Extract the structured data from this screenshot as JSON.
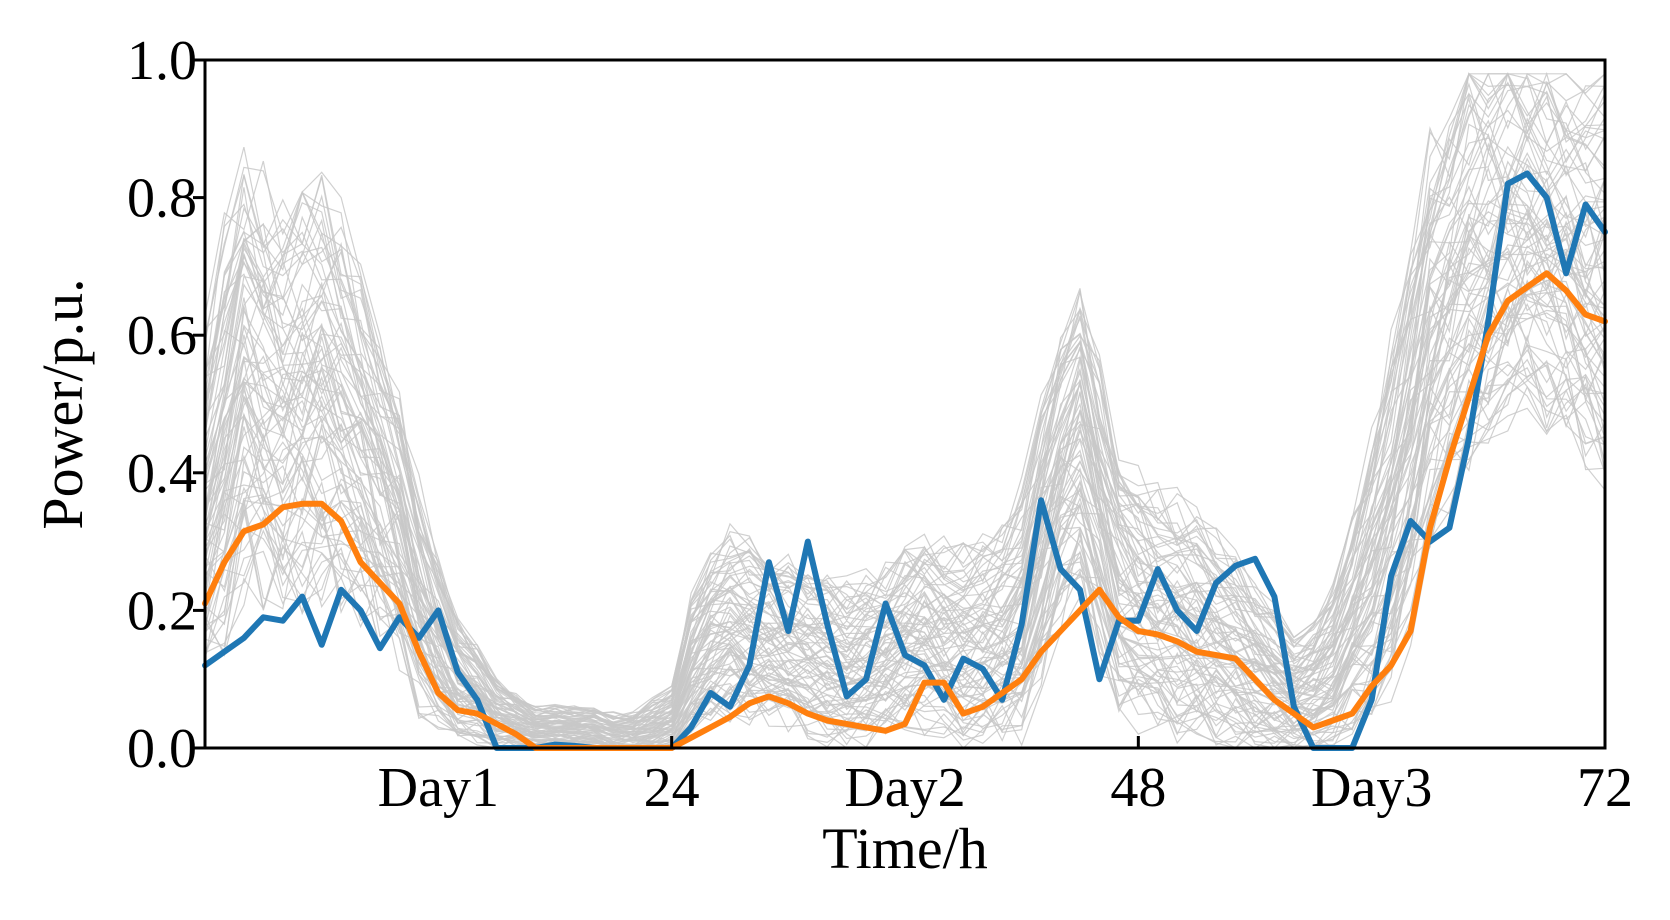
{
  "chart_data": {
    "type": "line",
    "xlabel": "Time/h",
    "ylabel": "Power/p.u.",
    "xlim": [
      0,
      72
    ],
    "ylim": [
      0,
      1.0
    ],
    "x_ticks": [
      24,
      48,
      72
    ],
    "x_tick_labels": [
      "24",
      "48",
      "72"
    ],
    "day_labels": [
      {
        "label": "Day1",
        "x": 12
      },
      {
        "label": "Day2",
        "x": 36
      },
      {
        "label": "Day3",
        "x": 60
      }
    ],
    "y_ticks": [
      0.0,
      0.2,
      0.4,
      0.6,
      0.8,
      1.0
    ],
    "y_tick_labels": [
      "0.0",
      "0.2",
      "0.4",
      "0.6",
      "0.8",
      "1.0"
    ],
    "grid": false,
    "x": [
      0,
      1,
      2,
      3,
      4,
      5,
      6,
      7,
      8,
      9,
      10,
      11,
      12,
      13,
      14,
      15,
      16,
      17,
      18,
      19,
      20,
      21,
      22,
      23,
      24,
      25,
      26,
      27,
      28,
      29,
      30,
      31,
      32,
      33,
      34,
      35,
      36,
      37,
      38,
      39,
      40,
      41,
      42,
      43,
      44,
      45,
      46,
      47,
      48,
      49,
      50,
      51,
      52,
      53,
      54,
      55,
      56,
      57,
      58,
      59,
      60,
      61,
      62,
      63,
      64,
      65,
      66,
      67,
      68,
      69,
      70,
      71,
      72
    ],
    "series": [
      {
        "color": "#1f77b4",
        "values": [
          0.12,
          0.14,
          0.16,
          0.19,
          0.185,
          0.22,
          0.15,
          0.23,
          0.2,
          0.145,
          0.19,
          0.16,
          0.2,
          0.11,
          0.07,
          0.0,
          0.0,
          0.0,
          0.005,
          0.003,
          0.0,
          0.0,
          0.0,
          0.0,
          0.0,
          0.03,
          0.08,
          0.06,
          0.12,
          0.27,
          0.17,
          0.3,
          0.18,
          0.075,
          0.1,
          0.21,
          0.135,
          0.12,
          0.07,
          0.13,
          0.115,
          0.07,
          0.18,
          0.36,
          0.26,
          0.23,
          0.1,
          0.185,
          0.185,
          0.26,
          0.2,
          0.17,
          0.24,
          0.265,
          0.275,
          0.22,
          0.06,
          0.0,
          0.0,
          0.0,
          0.07,
          0.25,
          0.33,
          0.3,
          0.32,
          0.45,
          0.62,
          0.82,
          0.835,
          0.8,
          0.69,
          0.79,
          0.75
        ]
      },
      {
        "color": "#ff7f0e",
        "values": [
          0.21,
          0.27,
          0.315,
          0.325,
          0.35,
          0.355,
          0.355,
          0.33,
          0.27,
          0.24,
          0.21,
          0.14,
          0.08,
          0.055,
          0.05,
          0.035,
          0.02,
          0.0,
          0.0,
          0.0,
          0.0,
          0.0,
          0.0,
          0.0,
          0.0,
          0.015,
          0.03,
          0.045,
          0.065,
          0.075,
          0.065,
          0.05,
          0.04,
          0.035,
          0.03,
          0.025,
          0.035,
          0.095,
          0.095,
          0.05,
          0.06,
          0.08,
          0.1,
          0.14,
          0.17,
          0.2,
          0.23,
          0.19,
          0.17,
          0.165,
          0.155,
          0.14,
          0.135,
          0.13,
          0.1,
          0.07,
          0.05,
          0.03,
          0.04,
          0.05,
          0.09,
          0.12,
          0.17,
          0.32,
          0.42,
          0.51,
          0.6,
          0.65,
          0.67,
          0.69,
          0.665,
          0.63,
          0.62
        ]
      }
    ],
    "scenario_band": {
      "color": "#c8c8c8",
      "count": 80,
      "base": [
        0.35,
        0.45,
        0.55,
        0.52,
        0.5,
        0.52,
        0.53,
        0.5,
        0.45,
        0.38,
        0.32,
        0.22,
        0.15,
        0.1,
        0.08,
        0.05,
        0.04,
        0.03,
        0.03,
        0.03,
        0.03,
        0.02,
        0.02,
        0.03,
        0.04,
        0.12,
        0.16,
        0.18,
        0.17,
        0.16,
        0.15,
        0.14,
        0.13,
        0.12,
        0.13,
        0.14,
        0.16,
        0.17,
        0.16,
        0.15,
        0.16,
        0.17,
        0.2,
        0.3,
        0.4,
        0.45,
        0.35,
        0.25,
        0.22,
        0.2,
        0.19,
        0.18,
        0.16,
        0.14,
        0.12,
        0.1,
        0.08,
        0.09,
        0.12,
        0.18,
        0.25,
        0.33,
        0.45,
        0.58,
        0.65,
        0.7,
        0.72,
        0.74,
        0.74,
        0.73,
        0.72,
        0.7,
        0.68
      ],
      "spread": [
        0.25,
        0.3,
        0.32,
        0.3,
        0.3,
        0.3,
        0.3,
        0.28,
        0.25,
        0.22,
        0.2,
        0.16,
        0.12,
        0.09,
        0.07,
        0.05,
        0.04,
        0.03,
        0.03,
        0.03,
        0.03,
        0.03,
        0.03,
        0.04,
        0.05,
        0.1,
        0.12,
        0.13,
        0.13,
        0.12,
        0.12,
        0.12,
        0.12,
        0.12,
        0.12,
        0.12,
        0.13,
        0.14,
        0.14,
        0.14,
        0.14,
        0.15,
        0.18,
        0.2,
        0.22,
        0.22,
        0.22,
        0.2,
        0.18,
        0.17,
        0.17,
        0.16,
        0.15,
        0.14,
        0.12,
        0.1,
        0.08,
        0.09,
        0.12,
        0.15,
        0.2,
        0.25,
        0.28,
        0.3,
        0.3,
        0.3,
        0.28,
        0.26,
        0.26,
        0.26,
        0.26,
        0.28,
        0.3
      ]
    }
  }
}
